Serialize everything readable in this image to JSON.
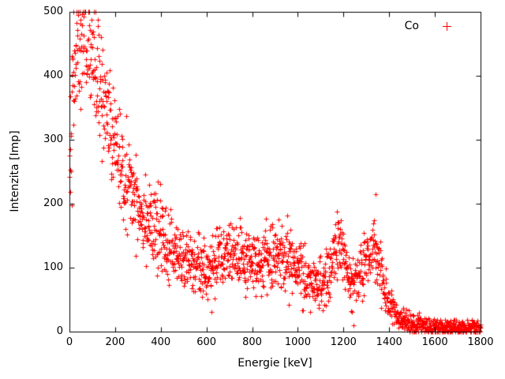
{
  "chart_data": {
    "type": "scatter",
    "title": "",
    "xlabel": "Energie [keV]",
    "ylabel": "Intenzita [Imp]",
    "xlim": [
      0,
      1800
    ],
    "ylim": [
      0,
      500
    ],
    "x_ticks": [
      0,
      200,
      400,
      600,
      800,
      1000,
      1200,
      1400,
      1600,
      1800
    ],
    "y_ticks": [
      0,
      100,
      200,
      300,
      400,
      500
    ],
    "grid": false,
    "legend_position": "top-right-inside",
    "series": [
      {
        "name": "Co",
        "marker": "plus",
        "color": "#ff0000",
        "step_kev": 1,
        "noise_sd_factor": 2.4,
        "envelope": [
          [
            0,
            280
          ],
          [
            10,
            350
          ],
          [
            20,
            410
          ],
          [
            30,
            440
          ],
          [
            50,
            460
          ],
          [
            70,
            455
          ],
          [
            90,
            440
          ],
          [
            110,
            415
          ],
          [
            130,
            385
          ],
          [
            150,
            355
          ],
          [
            170,
            325
          ],
          [
            190,
            300
          ],
          [
            210,
            278
          ],
          [
            230,
            258
          ],
          [
            250,
            240
          ],
          [
            270,
            222
          ],
          [
            290,
            208
          ],
          [
            310,
            195
          ],
          [
            330,
            183
          ],
          [
            350,
            172
          ],
          [
            370,
            161
          ],
          [
            390,
            151
          ],
          [
            410,
            142
          ],
          [
            430,
            134
          ],
          [
            450,
            127
          ],
          [
            470,
            121
          ],
          [
            490,
            116
          ],
          [
            510,
            111
          ],
          [
            530,
            106
          ],
          [
            550,
            103
          ],
          [
            570,
            100
          ],
          [
            590,
            99
          ],
          [
            610,
            100
          ],
          [
            630,
            103
          ],
          [
            650,
            108
          ],
          [
            670,
            114
          ],
          [
            690,
            120
          ],
          [
            700,
            122
          ],
          [
            720,
            117
          ],
          [
            740,
            111
          ],
          [
            760,
            107
          ],
          [
            780,
            106
          ],
          [
            800,
            108
          ],
          [
            820,
            110
          ],
          [
            840,
            112
          ],
          [
            860,
            114
          ],
          [
            880,
            115
          ],
          [
            900,
            116
          ],
          [
            920,
            118
          ],
          [
            940,
            117
          ],
          [
            960,
            111
          ],
          [
            980,
            104
          ],
          [
            1000,
            97
          ],
          [
            1020,
            90
          ],
          [
            1040,
            84
          ],
          [
            1060,
            79
          ],
          [
            1080,
            75
          ],
          [
            1100,
            73
          ],
          [
            1120,
            78
          ],
          [
            1140,
            95
          ],
          [
            1160,
            128
          ],
          [
            1173,
            148
          ],
          [
            1186,
            138
          ],
          [
            1200,
            112
          ],
          [
            1220,
            86
          ],
          [
            1240,
            75
          ],
          [
            1260,
            80
          ],
          [
            1280,
            93
          ],
          [
            1300,
            112
          ],
          [
            1320,
            128
          ],
          [
            1332,
            131
          ],
          [
            1345,
            120
          ],
          [
            1360,
            98
          ],
          [
            1380,
            68
          ],
          [
            1400,
            47
          ],
          [
            1420,
            33
          ],
          [
            1440,
            24
          ],
          [
            1460,
            18
          ],
          [
            1480,
            14
          ],
          [
            1500,
            11
          ],
          [
            1550,
            9
          ],
          [
            1600,
            8
          ],
          [
            1650,
            7
          ],
          [
            1700,
            7
          ],
          [
            1750,
            6
          ],
          [
            1800,
            6
          ]
        ]
      }
    ]
  },
  "colors": {
    "marker": "#ff0000",
    "axis": "#000000",
    "background": "#ffffff",
    "text": "#000000"
  }
}
